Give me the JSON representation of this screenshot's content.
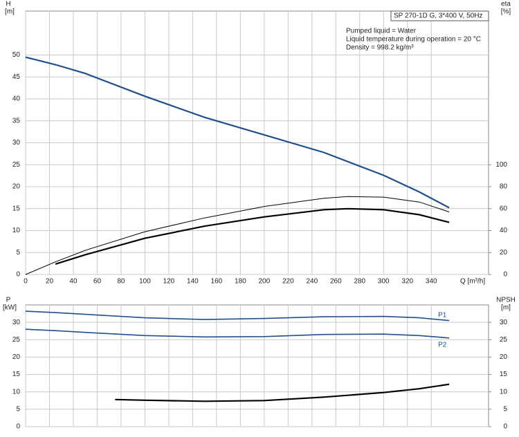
{
  "chart_data": [
    {
      "type": "line",
      "ylabel": "H",
      "yunit": "[m]",
      "y2label": "eta",
      "y2unit": "[%]",
      "xlabel": "Q [m³/h]",
      "info": [
        "SP 270-1D G, 3*400 V, 50Hz",
        "Pumped liquid = Water",
        "Liquid temperature during operation = 20 °C",
        "Density = 998.2 kg/m³"
      ],
      "xlim": [
        0,
        388
      ],
      "xticks": [
        0,
        20,
        40,
        60,
        80,
        100,
        120,
        140,
        160,
        180,
        200,
        220,
        240,
        260,
        280,
        300,
        320,
        340
      ],
      "ylim": [
        0,
        60
      ],
      "yticks": [
        0,
        5,
        10,
        15,
        20,
        25,
        30,
        35,
        40,
        45,
        50
      ],
      "y2lim": [
        0,
        240
      ],
      "y2ticks": [
        0,
        20,
        40,
        60,
        80,
        100
      ],
      "grid": true,
      "series": [
        {
          "color": "#1f4e8c",
          "x": [
            0,
            25,
            50,
            100,
            150,
            200,
            250,
            300,
            330,
            355
          ],
          "values": [
            49.5,
            47.8,
            45.8,
            40.6,
            35.8,
            31.8,
            27.8,
            22.6,
            18.8,
            15.2
          ]
        },
        {
          "color": "#000000",
          "axis": "y2",
          "x": [
            0,
            25,
            50,
            100,
            150,
            200,
            250,
            270,
            300,
            330,
            355
          ],
          "values": [
            0,
            11.5,
            22,
            39,
            51.5,
            62,
            69.5,
            71,
            70.5,
            66,
            57
          ]
        },
        {
          "color": "#000000",
          "axis": "y2",
          "x": [
            25,
            50,
            100,
            150,
            200,
            250,
            270,
            300,
            330,
            355
          ],
          "values": [
            9.5,
            18,
            33,
            44,
            52.5,
            59,
            60,
            59,
            54.5,
            47.5
          ]
        }
      ]
    },
    {
      "type": "line",
      "ylabel": "P",
      "yunit": "[kW]",
      "y2label": "NPSH",
      "y2unit": "[m]",
      "xlim": [
        0,
        388
      ],
      "xticks": [
        0,
        20,
        40,
        60,
        80,
        100,
        120,
        140,
        160,
        180,
        200,
        220,
        240,
        260,
        280,
        300,
        320,
        340
      ],
      "ylim": [
        0,
        35
      ],
      "yticks": [
        0,
        5,
        10,
        15,
        20,
        25,
        30
      ],
      "y2lim": [
        0,
        35
      ],
      "y2ticks": [
        0,
        5,
        10,
        15,
        20,
        25,
        30
      ],
      "grid": true,
      "series": [
        {
          "name": "P1",
          "color": "#1f4e8c",
          "x": [
            0,
            25,
            50,
            100,
            150,
            200,
            250,
            300,
            330,
            355
          ],
          "values": [
            33.2,
            32.8,
            32.3,
            31.3,
            30.8,
            31.1,
            31.6,
            31.7,
            31.3,
            30.5
          ]
        },
        {
          "name": "P2",
          "color": "#1f4e8c",
          "x": [
            0,
            25,
            50,
            100,
            150,
            200,
            250,
            300,
            330,
            355
          ],
          "values": [
            28,
            27.6,
            27.1,
            26.2,
            25.8,
            25.9,
            26.5,
            26.6,
            26.2,
            25.5
          ]
        },
        {
          "color": "#000000",
          "axis": "y2",
          "x": [
            75,
            100,
            150,
            200,
            250,
            300,
            330,
            355
          ],
          "values": [
            7.8,
            7.6,
            7.3,
            7.5,
            8.5,
            9.8,
            10.9,
            12.2
          ]
        }
      ]
    }
  ]
}
